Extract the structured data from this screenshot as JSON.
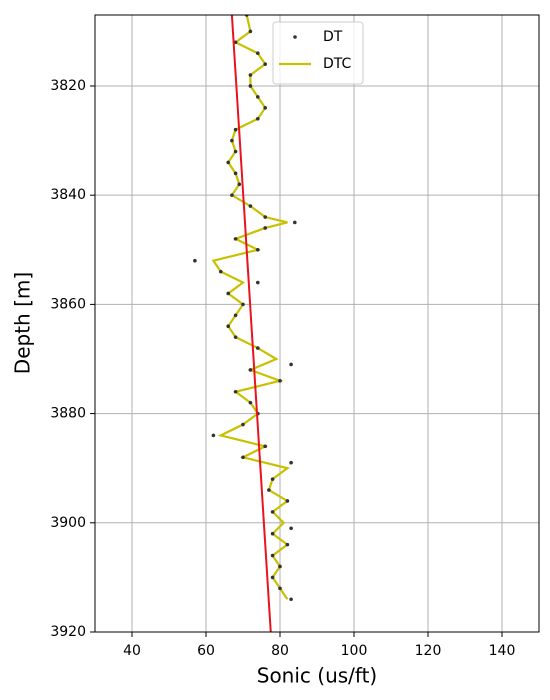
{
  "chart_data": {
    "type": "line",
    "xlabel": "Sonic (us/ft)",
    "ylabel": "Depth [m]",
    "xlim": [
      30,
      150
    ],
    "xticks": [
      40,
      60,
      80,
      100,
      120,
      140
    ],
    "ylim": [
      3920,
      3807
    ],
    "yticks": [
      3820,
      3840,
      3860,
      3880,
      3900,
      3920
    ],
    "grid": true,
    "legend": "upper center",
    "series": [
      {
        "name": "DT",
        "color": "#333333",
        "style": "dots",
        "x": [
          71,
          72,
          68,
          74,
          76,
          72,
          72,
          74,
          76,
          74,
          68,
          67,
          68,
          66,
          68,
          69,
          67,
          72,
          76,
          84,
          76,
          68,
          74,
          57,
          64,
          74,
          66,
          70,
          68,
          66,
          68,
          74,
          83,
          72,
          80,
          68,
          72,
          74,
          70,
          62,
          76,
          70,
          83,
          78,
          77,
          82,
          78,
          83,
          78,
          82,
          78,
          80,
          78,
          80,
          83
        ],
        "y": [
          3807,
          3810,
          3812,
          3814,
          3816,
          3818,
          3820,
          3822,
          3824,
          3826,
          3828,
          3830,
          3832,
          3834,
          3836,
          3838,
          3840,
          3842,
          3844,
          3845,
          3846,
          3848,
          3850,
          3852,
          3854,
          3856,
          3858,
          3860,
          3862,
          3864,
          3866,
          3868,
          3871,
          3872,
          3874,
          3876,
          3878,
          3880,
          3882,
          3884,
          3886,
          3888,
          3889,
          3892,
          3894,
          3896,
          3898,
          3901,
          3902,
          3904,
          3906,
          3908,
          3910,
          3912,
          3914
        ]
      },
      {
        "name": "DTC",
        "color": "#c8c000",
        "style": "line",
        "x": [
          71,
          72,
          68,
          74,
          76,
          72,
          72,
          74,
          76,
          74,
          68,
          67,
          68,
          66,
          68,
          69,
          67,
          72,
          76,
          82,
          76,
          68,
          74,
          62,
          64,
          70,
          66,
          70,
          68,
          66,
          68,
          74,
          79,
          72,
          80,
          68,
          72,
          74,
          70,
          64,
          76,
          70,
          82,
          78,
          77,
          82,
          78,
          81,
          78,
          82,
          78,
          80,
          78,
          80,
          82
        ],
        "y": [
          3807,
          3810,
          3812,
          3814,
          3816,
          3818,
          3820,
          3822,
          3824,
          3826,
          3828,
          3830,
          3832,
          3834,
          3836,
          3838,
          3840,
          3842,
          3844,
          3845,
          3846,
          3848,
          3850,
          3852,
          3854,
          3856,
          3858,
          3860,
          3862,
          3864,
          3866,
          3868,
          3870,
          3872,
          3874,
          3876,
          3878,
          3880,
          3882,
          3884,
          3886,
          3888,
          3890,
          3892,
          3894,
          3896,
          3898,
          3900,
          3902,
          3904,
          3906,
          3908,
          3910,
          3912,
          3914
        ]
      },
      {
        "color": "#e8141e",
        "style": "line",
        "x": [
          67,
          77.5
        ],
        "y": [
          3807,
          3920
        ]
      }
    ]
  }
}
